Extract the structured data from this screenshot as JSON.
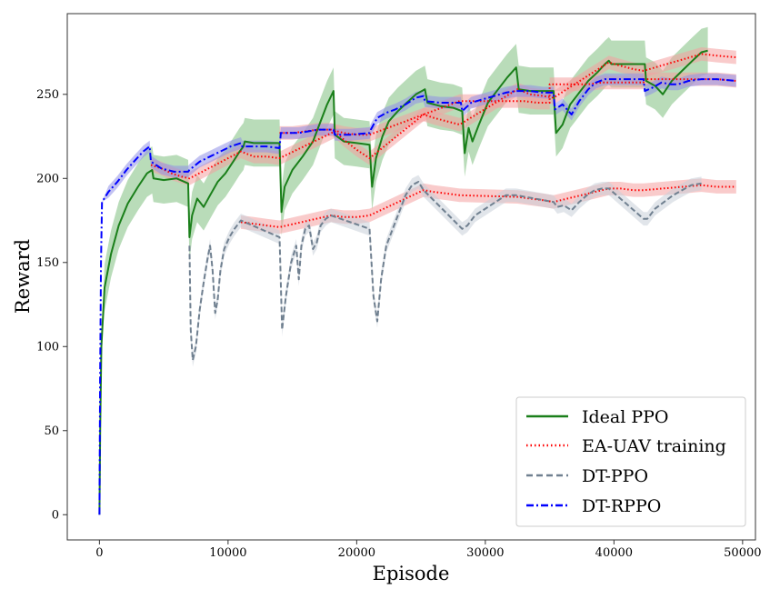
{
  "chart_data": {
    "type": "line",
    "title": "",
    "xlabel": "Episode",
    "ylabel": "Reward",
    "xlim": [
      -2500,
      51000
    ],
    "ylim": [
      -15,
      298
    ],
    "xticks": [
      0,
      10000,
      20000,
      30000,
      40000,
      50000
    ],
    "yticks": [
      0,
      50,
      100,
      150,
      200,
      250
    ],
    "legend_position": "lower-right",
    "grid": false,
    "series": [
      {
        "name": "Ideal PPO",
        "color": "#1a7f1a",
        "style": "solid",
        "band_color": "#7fc07f",
        "points": [
          [
            0,
            0
          ],
          [
            60,
            50
          ],
          [
            150,
            100
          ],
          [
            400,
            135
          ],
          [
            900,
            155
          ],
          [
            1500,
            172
          ],
          [
            2200,
            185
          ],
          [
            3000,
            195
          ],
          [
            3700,
            203
          ],
          [
            4100,
            205
          ],
          [
            4200,
            200
          ],
          [
            5000,
            199
          ],
          [
            6000,
            200
          ],
          [
            6900,
            197
          ],
          [
            7000,
            165
          ],
          [
            7200,
            178
          ],
          [
            7600,
            188
          ],
          [
            8100,
            183
          ],
          [
            8600,
            190
          ],
          [
            9200,
            198
          ],
          [
            9800,
            203
          ],
          [
            10400,
            210
          ],
          [
            10900,
            216
          ],
          [
            11200,
            219
          ],
          [
            11300,
            222
          ],
          [
            12000,
            221
          ],
          [
            13000,
            221
          ],
          [
            14000,
            221
          ],
          [
            14150,
            180
          ],
          [
            14400,
            195
          ],
          [
            15000,
            205
          ],
          [
            15800,
            213
          ],
          [
            16600,
            222
          ],
          [
            17200,
            234
          ],
          [
            17700,
            244
          ],
          [
            18200,
            252
          ],
          [
            18300,
            226
          ],
          [
            19000,
            222
          ],
          [
            20000,
            221
          ],
          [
            21000,
            220
          ],
          [
            21200,
            195
          ],
          [
            21500,
            212
          ],
          [
            22000,
            225
          ],
          [
            22500,
            234
          ],
          [
            23200,
            240
          ],
          [
            23900,
            245
          ],
          [
            24600,
            250
          ],
          [
            25300,
            253
          ],
          [
            25500,
            245
          ],
          [
            26500,
            243
          ],
          [
            27500,
            242
          ],
          [
            28200,
            240
          ],
          [
            28400,
            215
          ],
          [
            28700,
            230
          ],
          [
            29000,
            222
          ],
          [
            29500,
            232
          ],
          [
            30200,
            245
          ],
          [
            31000,
            253
          ],
          [
            31700,
            260
          ],
          [
            32400,
            266
          ],
          [
            32600,
            253
          ],
          [
            33500,
            252
          ],
          [
            34500,
            252
          ],
          [
            35300,
            252
          ],
          [
            35500,
            227
          ],
          [
            36000,
            232
          ],
          [
            36600,
            244
          ],
          [
            37300,
            251
          ],
          [
            38000,
            258
          ],
          [
            38700,
            263
          ],
          [
            39300,
            268
          ],
          [
            39600,
            270
          ],
          [
            39800,
            268
          ],
          [
            41000,
            268
          ],
          [
            42400,
            268
          ],
          [
            42500,
            258
          ],
          [
            43200,
            255
          ],
          [
            43800,
            250
          ],
          [
            44500,
            258
          ],
          [
            45300,
            264
          ],
          [
            46100,
            270
          ],
          [
            46800,
            275
          ],
          [
            47300,
            276
          ]
        ]
      },
      {
        "name": "EA-UAV training",
        "color": "#ff0000",
        "style": "dotted",
        "band_color": "#f4a0a0",
        "points": [
          [
            4000,
            208
          ],
          [
            4800,
            206
          ],
          [
            5600,
            203
          ],
          [
            6400,
            201
          ],
          [
            7000,
            200
          ],
          [
            11000,
            216
          ],
          [
            12000,
            213
          ],
          [
            13000,
            213
          ],
          [
            14000,
            212
          ],
          [
            18300,
            228
          ],
          [
            19000,
            223
          ],
          [
            20000,
            217
          ],
          [
            21000,
            212
          ],
          [
            25200,
            238
          ],
          [
            26000,
            236
          ],
          [
            27000,
            234
          ],
          [
            28000,
            232
          ],
          [
            32500,
            253
          ],
          [
            33500,
            250
          ],
          [
            34500,
            249
          ],
          [
            35300,
            248
          ],
          [
            39600,
            269
          ],
          [
            40500,
            267
          ],
          [
            41500,
            265
          ],
          [
            42300,
            264
          ],
          [
            46800,
            274
          ],
          [
            48000,
            273
          ],
          [
            49500,
            272
          ],
          [
            11000,
            174
          ],
          [
            12000,
            173
          ],
          [
            13000,
            172
          ],
          [
            14000,
            171
          ],
          [
            18000,
            178
          ],
          [
            19000,
            177
          ],
          [
            20000,
            177
          ],
          [
            21000,
            178
          ],
          [
            25200,
            193
          ],
          [
            26000,
            192
          ],
          [
            27000,
            191
          ],
          [
            28000,
            190
          ],
          [
            32500,
            189
          ],
          [
            33500,
            188
          ],
          [
            34500,
            187
          ],
          [
            35300,
            186
          ],
          [
            39600,
            194
          ],
          [
            40500,
            194
          ],
          [
            41500,
            193
          ],
          [
            42300,
            193
          ],
          [
            46800,
            196
          ],
          [
            48000,
            195
          ],
          [
            49500,
            195
          ],
          [
            14000,
            227
          ],
          [
            15000,
            227
          ],
          [
            16000,
            228
          ],
          [
            17000,
            229
          ],
          [
            18000,
            229
          ],
          [
            19000,
            227
          ],
          [
            20000,
            226
          ],
          [
            21000,
            226
          ],
          [
            28000,
            246
          ],
          [
            29000,
            246
          ],
          [
            30000,
            246
          ],
          [
            31000,
            246
          ],
          [
            32000,
            246
          ],
          [
            33000,
            246
          ],
          [
            34000,
            245
          ],
          [
            35000,
            245
          ],
          [
            35000,
            256
          ],
          [
            36000,
            256
          ],
          [
            37000,
            256
          ],
          [
            38000,
            256
          ],
          [
            39000,
            257
          ],
          [
            40000,
            257
          ],
          [
            41000,
            257
          ],
          [
            42300,
            257
          ],
          [
            42300,
            259
          ],
          [
            44000,
            259
          ],
          [
            46000,
            259
          ],
          [
            47000,
            259
          ],
          [
            48000,
            259
          ],
          [
            49500,
            258
          ]
        ]
      },
      {
        "name": "DT-PPO",
        "color": "#708090",
        "style": "dashed",
        "band_color": "#c8d0d8",
        "points": [
          [
            7000,
            160
          ],
          [
            7100,
            110
          ],
          [
            7250,
            92
          ],
          [
            7500,
            100
          ],
          [
            7800,
            122
          ],
          [
            8100,
            138
          ],
          [
            8400,
            152
          ],
          [
            8600,
            160
          ],
          [
            8800,
            145
          ],
          [
            9000,
            120
          ],
          [
            9200,
            128
          ],
          [
            9400,
            145
          ],
          [
            9700,
            158
          ],
          [
            10100,
            165
          ],
          [
            10500,
            170
          ],
          [
            11000,
            175
          ],
          [
            14000,
            165
          ],
          [
            14200,
            110
          ],
          [
            14500,
            130
          ],
          [
            14900,
            150
          ],
          [
            15300,
            160
          ],
          [
            15500,
            140
          ],
          [
            15700,
            160
          ],
          [
            16000,
            170
          ],
          [
            16300,
            172
          ],
          [
            16600,
            158
          ],
          [
            16900,
            162
          ],
          [
            17200,
            172
          ],
          [
            17600,
            176
          ],
          [
            18000,
            178
          ],
          [
            21000,
            170
          ],
          [
            21300,
            130
          ],
          [
            21600,
            115
          ],
          [
            21900,
            140
          ],
          [
            22300,
            160
          ],
          [
            22800,
            170
          ],
          [
            23300,
            180
          ],
          [
            23800,
            190
          ],
          [
            24300,
            196
          ],
          [
            24800,
            198
          ],
          [
            25200,
            193
          ],
          [
            28200,
            170
          ],
          [
            28600,
            172
          ],
          [
            29200,
            178
          ],
          [
            30000,
            182
          ],
          [
            30800,
            186
          ],
          [
            31600,
            190
          ],
          [
            32400,
            190
          ],
          [
            35300,
            186
          ],
          [
            35600,
            183
          ],
          [
            36100,
            184
          ],
          [
            36700,
            181
          ],
          [
            37300,
            186
          ],
          [
            37900,
            190
          ],
          [
            38500,
            193
          ],
          [
            39100,
            194
          ],
          [
            39600,
            194
          ],
          [
            42300,
            176
          ],
          [
            42600,
            176
          ],
          [
            43200,
            182
          ],
          [
            43900,
            186
          ],
          [
            44600,
            190
          ],
          [
            45300,
            193
          ],
          [
            46000,
            196
          ],
          [
            46800,
            197
          ]
        ]
      },
      {
        "name": "DT-RPPO",
        "color": "#0000ff",
        "style": "dashdot",
        "band_color": "#9090e8",
        "points": [
          [
            0,
            0
          ],
          [
            50,
            80
          ],
          [
            120,
            150
          ],
          [
            200,
            186
          ],
          [
            700,
            192
          ],
          [
            1400,
            198
          ],
          [
            2100,
            205
          ],
          [
            2800,
            211
          ],
          [
            3400,
            216
          ],
          [
            3900,
            219
          ],
          [
            4000,
            210
          ],
          [
            4800,
            206
          ],
          [
            5800,
            204
          ],
          [
            6900,
            204
          ],
          [
            7000,
            205
          ],
          [
            7800,
            210
          ],
          [
            8600,
            213
          ],
          [
            9400,
            216
          ],
          [
            10200,
            219
          ],
          [
            11000,
            221
          ],
          [
            11100,
            219
          ],
          [
            12000,
            219
          ],
          [
            13000,
            219
          ],
          [
            14000,
            218
          ],
          [
            14100,
            227
          ],
          [
            15500,
            227
          ],
          [
            17000,
            229
          ],
          [
            18200,
            229
          ],
          [
            18300,
            226
          ],
          [
            19500,
            226
          ],
          [
            21000,
            227
          ],
          [
            21100,
            229
          ],
          [
            21600,
            236
          ],
          [
            22300,
            239
          ],
          [
            23000,
            241
          ],
          [
            23800,
            244
          ],
          [
            24600,
            248
          ],
          [
            25200,
            249
          ],
          [
            25300,
            246
          ],
          [
            26500,
            245
          ],
          [
            28100,
            245
          ],
          [
            28200,
            240
          ],
          [
            28900,
            245
          ],
          [
            29800,
            247
          ],
          [
            30700,
            249
          ],
          [
            31600,
            251
          ],
          [
            32400,
            252
          ],
          [
            32500,
            252
          ],
          [
            33500,
            252
          ],
          [
            34500,
            251
          ],
          [
            35300,
            251
          ],
          [
            35400,
            241
          ],
          [
            36000,
            244
          ],
          [
            36700,
            238
          ],
          [
            37300,
            246
          ],
          [
            38000,
            253
          ],
          [
            38600,
            257
          ],
          [
            39300,
            259
          ],
          [
            39600,
            259
          ],
          [
            39700,
            259
          ],
          [
            41000,
            259
          ],
          [
            42300,
            259
          ],
          [
            42400,
            252
          ],
          [
            43000,
            254
          ],
          [
            43700,
            257
          ],
          [
            44400,
            256
          ],
          [
            45000,
            256
          ],
          [
            45800,
            258
          ],
          [
            46800,
            259
          ],
          [
            46900,
            259
          ],
          [
            48000,
            259
          ],
          [
            49500,
            258
          ]
        ]
      }
    ]
  }
}
